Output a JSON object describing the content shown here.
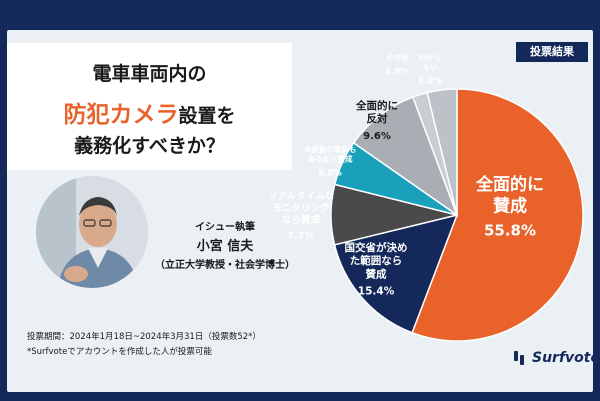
{
  "title": {
    "line1": "電車車両内の",
    "line2_highlight": "防犯カメラ",
    "line2_rest": "設置を",
    "line3": "義務化すべきか？"
  },
  "author": {
    "role": "イシュー執筆",
    "name": "小宮 信夫",
    "affiliation": "（立正大学教授・社会学博士）"
  },
  "footnotes": {
    "period": "投票期間：2024年1月18日~2024年3月31日（投票数52*）",
    "note": "*Surfvoteでアカウントを作成した人が投票可能"
  },
  "badge": "投票結果",
  "logo": "Surfvote",
  "colors": {
    "background_frame": "#14285a",
    "highlight": "#e8622a"
  },
  "chart_data": {
    "type": "pie",
    "title": "",
    "unit": "%",
    "slices": [
      {
        "lines": [
          "全面的に",
          "賛成"
        ],
        "value": 55.8,
        "value_label": "55.8%",
        "color": "#e8622a",
        "text_color": "#ffffff"
      },
      {
        "lines": [
          "国交省が決め",
          "た範囲なら",
          "賛成"
        ],
        "value": 15.4,
        "value_label": "15.4%",
        "color": "#14285a",
        "text_color": "#ffffff"
      },
      {
        "lines": [
          "リアルタイムな",
          "モニタリング",
          "なら賛成"
        ],
        "value": 7.7,
        "value_label": "7.7%",
        "color": "#4a4a4a",
        "text_color": "#ffffff"
      },
      {
        "lines": [
          "未設置の車両も",
          "あるなら賛成"
        ],
        "value": 5.8,
        "value_label": "5.8%",
        "color": "#1aa0bb",
        "text_color": "#ffffff"
      },
      {
        "lines": [
          "全面的に",
          "反対"
        ],
        "value": 9.6,
        "value_label": "9.6%",
        "color": "#a8aeb4",
        "text_color": "#1a1a1a"
      },
      {
        "lines": [
          "その他"
        ],
        "value": 1.9,
        "value_label": "1.9%",
        "color": "#c9ced3",
        "text_color": "#ffffff"
      },
      {
        "lines": [
          "わから",
          "ない"
        ],
        "value": 3.8,
        "value_label": "3.8%",
        "color": "#bcc2c7",
        "text_color": "#ffffff"
      }
    ]
  }
}
